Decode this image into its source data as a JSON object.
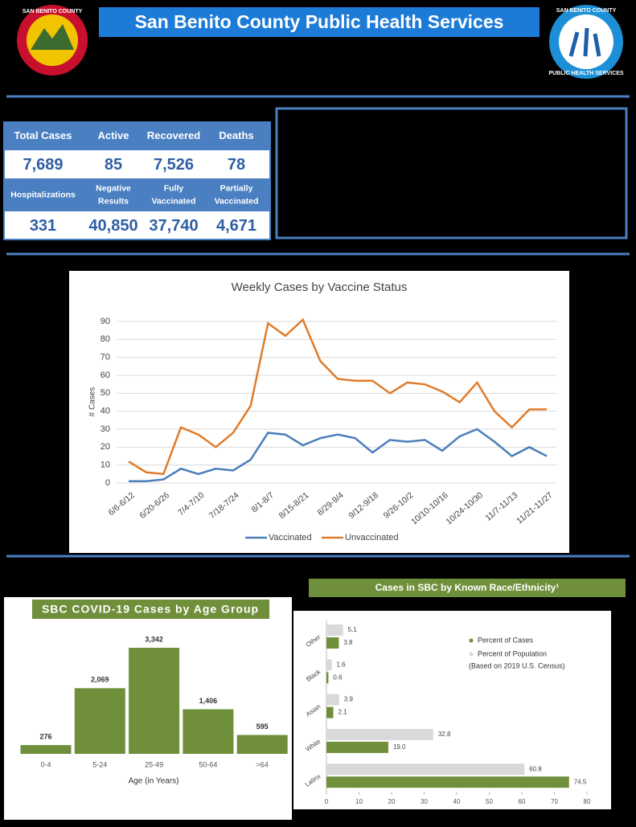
{
  "header": {
    "title": "San Benito County Public Health Services",
    "left_logo": "SAN BENITO COUNTY",
    "right_logo": [
      "SAN BENITO COUNTY",
      "PUBLIC HEALTH SERVICES"
    ]
  },
  "stats": {
    "rows": [
      {
        "labels": [
          "Total Cases",
          "Active",
          "Recovered",
          "Deaths"
        ],
        "values": [
          "7,689",
          "85",
          "7,526",
          "78"
        ]
      },
      {
        "labels": [
          "Hospitalizations",
          "Negative Results",
          "Fully Vaccinated",
          "Partially Vaccinated"
        ],
        "values": [
          "331",
          "40,850",
          "37,740",
          "4,671"
        ]
      }
    ]
  },
  "chart_data": [
    {
      "type": "line",
      "title": "Weekly Cases by Vaccine Status",
      "y_label": "# Cases",
      "categories": [
        "6/6-6/12",
        null,
        "6/20-6/26",
        null,
        "7/4-7/10",
        null,
        "7/18-7/24",
        null,
        "8/1-8/7",
        null,
        "8/15-8/21",
        null,
        "8/29-9/4",
        null,
        "9/12-9/18",
        null,
        "9/26-10/2",
        null,
        "10/10-10/16",
        null,
        "10/24-10/30",
        null,
        "11/7-11/13",
        null,
        "11/21-11/27"
      ],
      "series": [
        {
          "name": "Vaccinated",
          "color": "#4a7ebb",
          "values": [
            1,
            1,
            2,
            8,
            5,
            8,
            7,
            13,
            28,
            27,
            21,
            25,
            27,
            25,
            17,
            24,
            23,
            24,
            18,
            26,
            30,
            23,
            15,
            20,
            15
          ]
        },
        {
          "name": "Unvaccinated",
          "color": "#e07b2a",
          "values": [
            12,
            6,
            5,
            31,
            27,
            20,
            28,
            43,
            89,
            82,
            91,
            68,
            58,
            57,
            57,
            50,
            56,
            55,
            51,
            45,
            56,
            40,
            31,
            41,
            41
          ]
        }
      ],
      "ylim": [
        0,
        90
      ],
      "yticks": [
        0,
        10,
        20,
        30,
        40,
        50,
        60,
        70,
        80,
        90
      ],
      "grid": true,
      "legend": "bottom"
    },
    {
      "type": "bar",
      "title": "SBC COVID-19 Cases by Age Group",
      "x_label": "Age (in Years)",
      "color": "#6f8f3a",
      "categories": [
        "0-4",
        "5-24",
        "25-49",
        "50-64",
        ">64"
      ],
      "values": [
        276,
        2069,
        3342,
        1406,
        595
      ],
      "value_labels": [
        "276",
        "2,069",
        "3,342",
        "1,406",
        "595"
      ]
    },
    {
      "type": "barh",
      "title": "Cases in SBC by Known Race/Ethnicity¹",
      "categories": [
        "Other",
        "Black",
        "Asian",
        "White",
        "Latinx"
      ],
      "series": [
        {
          "name": "Percent of Population",
          "color": "#d9d9d9",
          "values": [
            5.1,
            1.6,
            3.9,
            32.8,
            60.8
          ],
          "value_labels": [
            "5.1",
            "1.6",
            "3.9",
            "32.8",
            "60.8"
          ]
        },
        {
          "name": "Percent of Cases",
          "color": "#6f8f3a",
          "values": [
            3.8,
            0.6,
            2.1,
            19,
            74.5
          ],
          "value_labels": [
            "3.8",
            "0.6",
            "2.1",
            "19.0",
            "74.5"
          ]
        }
      ],
      "legend_note": "(Based on 2019 U.S. Census)",
      "xlim": [
        0,
        80
      ],
      "xticks": [
        0,
        10,
        20,
        30,
        40,
        50,
        60,
        70,
        80
      ]
    }
  ]
}
